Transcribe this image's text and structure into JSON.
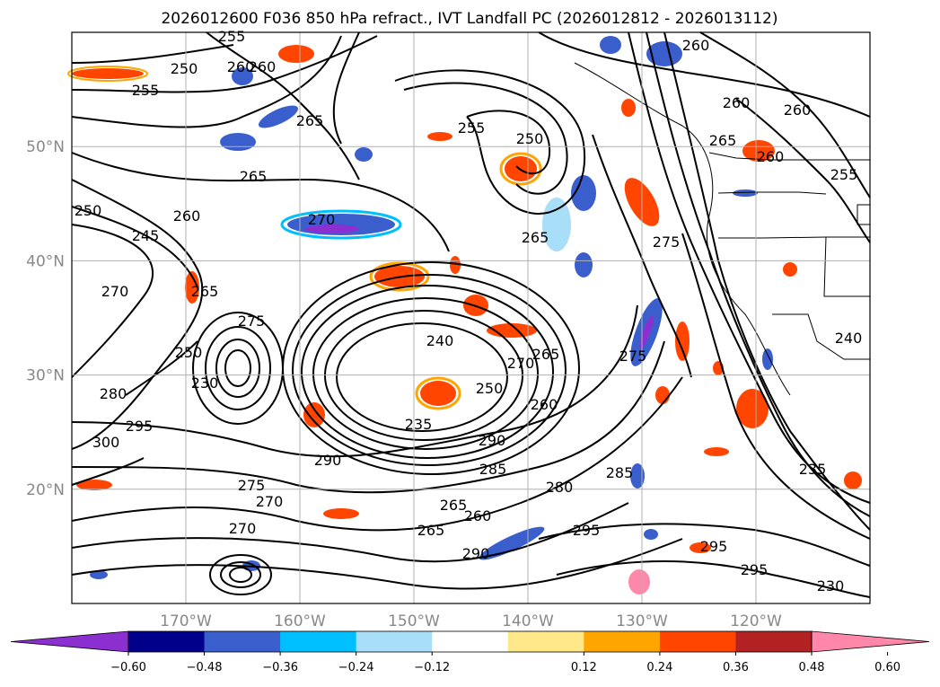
{
  "title": "2026012600 F036 850 hPa refract., IVT Landfall PC (2026012812 - 2026013112)",
  "map": {
    "lon_range": [
      -180,
      -110
    ],
    "lat_range": [
      10,
      60
    ],
    "lat_ticks": [
      "50°N",
      "40°N",
      "30°N",
      "20°N"
    ],
    "lat_tick_values": [
      50,
      40,
      30,
      20
    ],
    "lon_ticks": [
      "170°W",
      "160°W",
      "150°W",
      "140°W",
      "130°W",
      "120°W"
    ],
    "lon_tick_values": [
      -170,
      -160,
      -150,
      -140,
      -130,
      -120
    ],
    "grid": true,
    "contour_labels": [
      "255",
      "250",
      "260",
      "255",
      "265",
      "260",
      "255",
      "250",
      "265",
      "270",
      "250",
      "260",
      "245",
      "265",
      "270",
      "240",
      "235",
      "270",
      "265",
      "260",
      "250",
      "275",
      "290",
      "295",
      "300",
      "280",
      "275",
      "270",
      "285",
      "265",
      "260",
      "290",
      "295",
      "285",
      "265",
      "270",
      "295",
      "290",
      "295",
      "235",
      "240",
      "265",
      "260",
      "260",
      "255",
      "265",
      "260",
      "260",
      "275",
      "275",
      "250",
      "230",
      "230",
      "280"
    ]
  },
  "colorbar": {
    "ticks": [
      "−0.60",
      "−0.48",
      "−0.36",
      "−0.24",
      "−0.12",
      "0.12",
      "0.24",
      "0.36",
      "0.48",
      "0.60"
    ],
    "colors": [
      "#8b2fd0",
      "#00008b",
      "#3a5fcd",
      "#00bfff",
      "#a9def9",
      "#ffffff",
      "#ffe88a",
      "#ffa500",
      "#ff4500",
      "#b22222",
      "#ff88aa"
    ]
  }
}
